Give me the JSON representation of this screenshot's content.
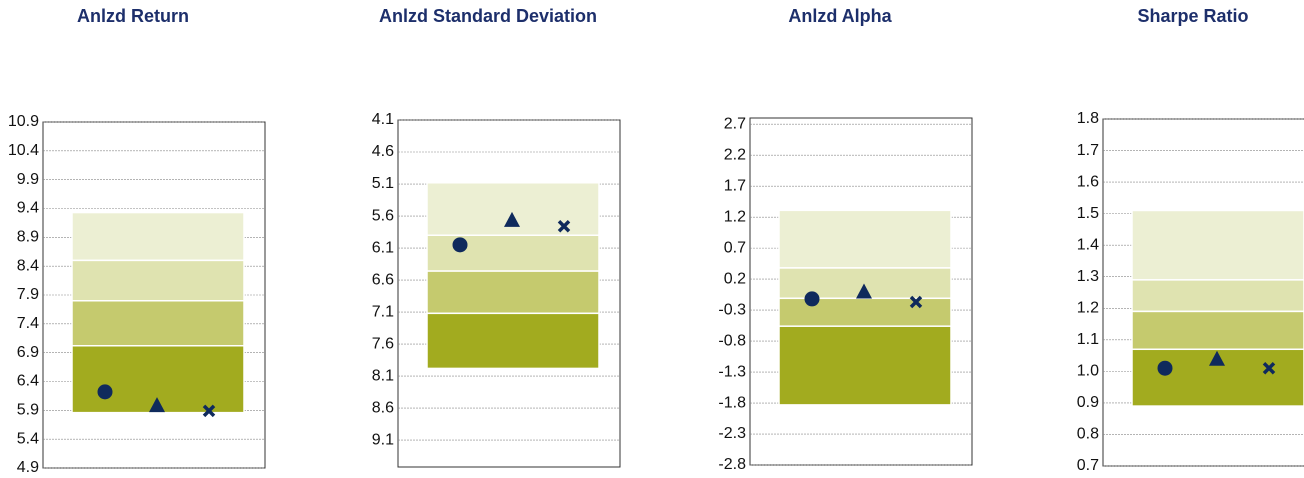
{
  "chart_data": [
    {
      "type": "quartile",
      "title": "Anlzd Return",
      "ylim": [
        4.9,
        10.9
      ],
      "yticks": [
        4.9,
        5.4,
        5.9,
        6.4,
        6.9,
        7.4,
        7.9,
        8.4,
        8.9,
        9.4,
        9.9,
        10.4,
        10.9
      ],
      "band_edges": [
        9.33,
        8.5,
        7.8,
        7.02,
        5.86
      ],
      "band_colors": [
        "#ecefd3",
        "#dfe3b0",
        "#c5ca6e",
        "#a2ab1f"
      ],
      "values": [
        6.22,
        5.99,
        5.89
      ],
      "markers": [
        "circle",
        "triangle",
        "cross"
      ],
      "marker_color": "#0f2a5c",
      "grid": true
    },
    {
      "type": "quartile",
      "title": "Anlzd Standard Deviation",
      "ylim": [
        9.52,
        4.1
      ],
      "yticks": [
        4.1,
        4.6,
        5.1,
        5.6,
        6.1,
        6.6,
        7.1,
        7.6,
        8.1,
        8.6,
        9.1
      ],
      "band_edges": [
        5.08,
        5.9,
        6.46,
        7.12,
        7.98
      ],
      "band_colors": [
        "#ecefd3",
        "#dfe3b0",
        "#c5ca6e",
        "#a2ab1f"
      ],
      "values": [
        6.05,
        5.66,
        5.76
      ],
      "markers": [
        "circle",
        "triangle",
        "cross"
      ],
      "marker_color": "#0f2a5c",
      "grid": true
    },
    {
      "type": "quartile",
      "title": "Anlzd Alpha",
      "ylim": [
        -2.8,
        2.8
      ],
      "yticks": [
        -2.8,
        -2.3,
        -1.8,
        -1.3,
        -0.8,
        -0.3,
        0.2,
        0.7,
        1.2,
        1.7,
        2.2,
        2.7
      ],
      "band_edges": [
        1.31,
        0.38,
        -0.11,
        -0.56,
        -1.83
      ],
      "band_colors": [
        "#ecefd3",
        "#dfe3b0",
        "#c5ca6e",
        "#a2ab1f"
      ],
      "values": [
        -0.12,
        0.0,
        -0.17
      ],
      "markers": [
        "circle",
        "triangle",
        "cross"
      ],
      "marker_color": "#0f2a5c",
      "grid": true
    },
    {
      "type": "quartile",
      "title": "Sharpe Ratio",
      "ylim": [
        0.7,
        1.8
      ],
      "yticks": [
        0.7,
        0.8,
        0.9,
        {
          "value": 1,
          "label": "1.0"
        },
        1.1,
        1.2,
        1.3,
        1.4,
        1.5,
        1.6,
        1.7,
        1.8
      ],
      "band_edges": [
        1.51,
        1.29,
        1.19,
        1.07,
        0.89
      ],
      "band_colors": [
        "#ecefd3",
        "#dfe3b0",
        "#c5ca6e",
        "#a2ab1f"
      ],
      "values": [
        1.01,
        1.04,
        1.01
      ],
      "markers": [
        "circle",
        "triangle",
        "cross"
      ],
      "marker_color": "#0f2a5c",
      "grid": true
    }
  ]
}
